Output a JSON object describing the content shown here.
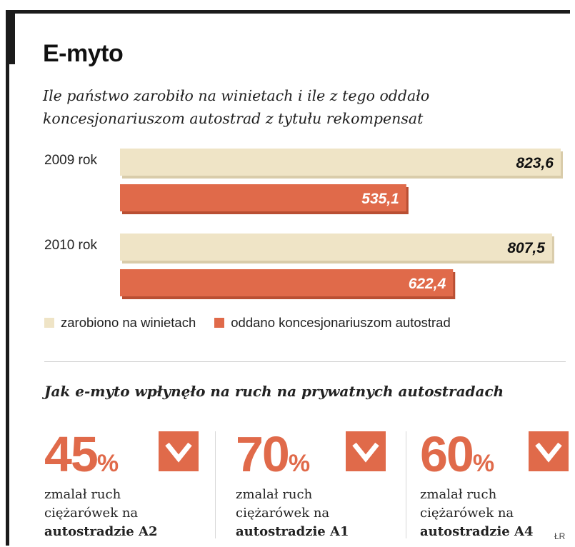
{
  "header": {
    "title": "E-myto",
    "subtitle": "Ile państwo zarobiło na winietach i ile z tego oddało koncesjonariuszom autostrad z tytułu rekompensat"
  },
  "chart_data": {
    "type": "bar",
    "orientation": "horizontal",
    "categories": [
      "2009 rok",
      "2010 rok"
    ],
    "series": [
      {
        "name": "zarobiono na winietach",
        "values": [
          823.6,
          807.5
        ],
        "labels": [
          "823,6",
          "807,5"
        ],
        "color": "#efe4c6"
      },
      {
        "name": "oddano koncesjonariuszom autostrad",
        "values": [
          535.1,
          622.4
        ],
        "labels": [
          "535,1",
          "622,4"
        ],
        "color": "#e06a4a"
      }
    ],
    "xlim": [
      0,
      823.6
    ],
    "grid": false,
    "legend": "bottom-left"
  },
  "section2": {
    "title": "Jak e-myto wpłynęło na ruch na prywatnych autostradach",
    "stats": [
      {
        "value": "45",
        "unit": "%",
        "line1": "zmalał ruch",
        "line2": "ciężarówek na",
        "line3": "autostradzie A2",
        "icon": "down-arrow-icon"
      },
      {
        "value": "70",
        "unit": "%",
        "line1": "zmalał ruch",
        "line2": "ciężarówek na",
        "line3": "autostradzie A1",
        "icon": "down-arrow-icon"
      },
      {
        "value": "60",
        "unit": "%",
        "line1": "zmalał ruch",
        "line2": "ciężarówek na",
        "line3": "autostradzie A4",
        "icon": "down-arrow-icon"
      }
    ]
  },
  "credit": "ŁR"
}
